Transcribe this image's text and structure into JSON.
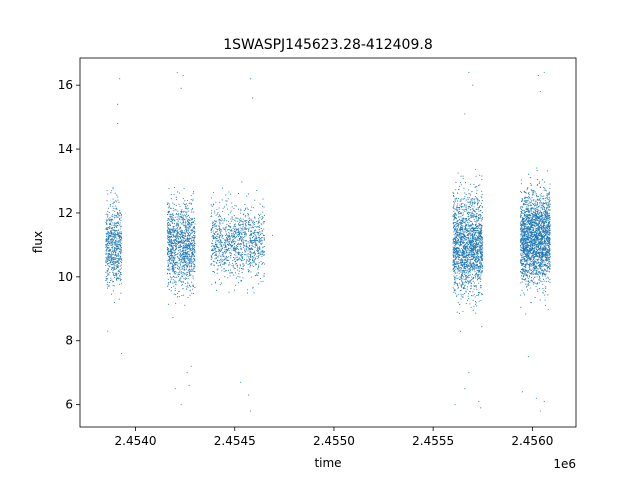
{
  "chart_data": {
    "type": "scatter",
    "title": "1SWASPJ145623.28-412409.8",
    "xlabel": "time",
    "ylabel": "flux",
    "x_offset_label": "1e6",
    "xlim": [
      2.45372,
      2.45622
    ],
    "ylim": [
      5.3,
      16.85
    ],
    "x_ticks": [
      2.454,
      2.4545,
      2.455,
      2.4555,
      2.456
    ],
    "x_tick_labels": [
      "2.4540",
      "2.4545",
      "2.4550",
      "2.4555",
      "2.4560"
    ],
    "y_ticks": [
      6,
      8,
      10,
      12,
      14,
      16
    ],
    "y_tick_labels": [
      "6",
      "8",
      "10",
      "12",
      "14",
      "16"
    ],
    "grid": false,
    "marker_color": "#1f77b4",
    "clusters": [
      {
        "x_start": 2.45385,
        "x_end": 2.45393,
        "y_center": 11.0,
        "y_spread": 0.95,
        "n": 650,
        "extremes": [
          [
            2.45392,
            16.2
          ],
          [
            2.45391,
            15.4
          ],
          [
            2.45386,
            8.3
          ],
          [
            2.45393,
            7.6
          ],
          [
            2.45391,
            14.8
          ]
        ]
      },
      {
        "x_start": 2.45416,
        "x_end": 2.4543,
        "y_center": 11.0,
        "y_spread": 0.9,
        "n": 1200,
        "extremes": [
          [
            2.45421,
            16.4
          ],
          [
            2.45424,
            16.3
          ],
          [
            2.45423,
            15.9
          ],
          [
            2.4542,
            6.5
          ],
          [
            2.45423,
            6.0
          ],
          [
            2.45428,
            7.2
          ],
          [
            2.45427,
            6.6
          ],
          [
            2.45426,
            7.0
          ]
        ]
      },
      {
        "x_start": 2.45438,
        "x_end": 2.45465,
        "y_center": 11.1,
        "y_spread": 0.8,
        "n": 1100,
        "extremes": [
          [
            2.45458,
            16.2
          ],
          [
            2.45459,
            15.6
          ],
          [
            2.45453,
            6.7
          ],
          [
            2.45457,
            6.3
          ],
          [
            2.45458,
            5.8
          ],
          [
            2.45469,
            11.3
          ],
          [
            2.45465,
            10.4
          ]
        ]
      },
      {
        "x_start": 2.4556,
        "x_end": 2.45575,
        "y_center": 11.0,
        "y_spread": 1.1,
        "n": 1800,
        "extremes": [
          [
            2.45568,
            16.4
          ],
          [
            2.4557,
            16.0
          ],
          [
            2.45566,
            15.1
          ],
          [
            2.45561,
            6.0
          ],
          [
            2.45566,
            6.5
          ],
          [
            2.45573,
            6.1
          ],
          [
            2.45574,
            5.9
          ],
          [
            2.45568,
            7.0
          ]
        ]
      },
      {
        "x_start": 2.45594,
        "x_end": 2.45609,
        "y_center": 11.2,
        "y_spread": 1.0,
        "n": 2300,
        "extremes": [
          [
            2.45603,
            16.3
          ],
          [
            2.45606,
            16.4
          ],
          [
            2.45604,
            15.8
          ],
          [
            2.45595,
            6.4
          ],
          [
            2.45602,
            6.2
          ],
          [
            2.45604,
            5.8
          ],
          [
            2.45606,
            6.1
          ],
          [
            2.45598,
            7.5
          ]
        ]
      }
    ]
  }
}
